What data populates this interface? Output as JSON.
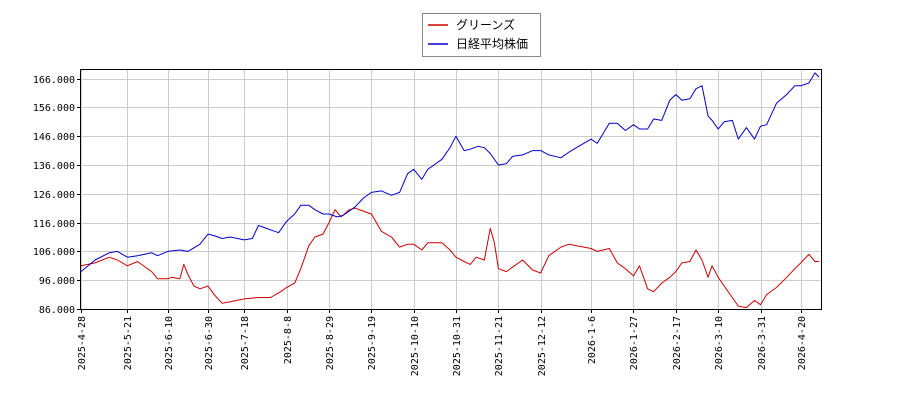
{
  "chart_data": {
    "type": "line",
    "legend_position": "top-center",
    "grid": true,
    "ylim": [
      86000,
      169000
    ],
    "yticks": [
      {
        "value": 86000,
        "label": "86.000"
      },
      {
        "value": 96000,
        "label": "96.000"
      },
      {
        "value": 106000,
        "label": "106.000"
      },
      {
        "value": 116000,
        "label": "116.000"
      },
      {
        "value": 126000,
        "label": "126.000"
      },
      {
        "value": 136000,
        "label": "136.000"
      },
      {
        "value": 146000,
        "label": "146.000"
      },
      {
        "value": 156000,
        "label": "156.000"
      },
      {
        "value": 166000,
        "label": "166.000"
      }
    ],
    "xlim": [
      "2025-04-28",
      "2026-04-30"
    ],
    "xticks": [
      "2025-4-28",
      "2025-5-21",
      "2025-6-10",
      "2025-6-30",
      "2025-7-18",
      "2025-8-8",
      "2025-8-29",
      "2025-9-19",
      "2025-10-10",
      "2025-10-31",
      "2025-11-21",
      "2025-12-12",
      "2026-1-6",
      "2026-1-27",
      "2026-2-17",
      "2026-3-10",
      "2026-3-31",
      "2026-4-20"
    ],
    "series": [
      {
        "name": "グリーンズ",
        "color": "#cc0000",
        "points": [
          [
            "2025-04-28",
            101000
          ],
          [
            "2025-05-05",
            102000
          ],
          [
            "2025-05-12",
            104000
          ],
          [
            "2025-05-16",
            103000
          ],
          [
            "2025-05-21",
            101000
          ],
          [
            "2025-05-26",
            102500
          ],
          [
            "2025-06-02",
            99000
          ],
          [
            "2025-06-05",
            96500
          ],
          [
            "2025-06-10",
            96500
          ],
          [
            "2025-06-12",
            97000
          ],
          [
            "2025-06-16",
            96500
          ],
          [
            "2025-06-18",
            101500
          ],
          [
            "2025-06-20",
            98000
          ],
          [
            "2025-06-23",
            94000
          ],
          [
            "2025-06-26",
            93000
          ],
          [
            "2025-06-30",
            94000
          ],
          [
            "2025-07-03",
            91000
          ],
          [
            "2025-07-07",
            88000
          ],
          [
            "2025-07-11",
            88500
          ],
          [
            "2025-07-18",
            89500
          ],
          [
            "2025-07-25",
            90000
          ],
          [
            "2025-07-31",
            90000
          ],
          [
            "2025-08-05",
            92000
          ],
          [
            "2025-08-08",
            93500
          ],
          [
            "2025-08-12",
            95000
          ],
          [
            "2025-08-15",
            100000
          ],
          [
            "2025-08-19",
            108000
          ],
          [
            "2025-08-22",
            111000
          ],
          [
            "2025-08-26",
            112000
          ],
          [
            "2025-08-29",
            116000
          ],
          [
            "2025-09-01",
            120500
          ],
          [
            "2025-09-04",
            118000
          ],
          [
            "2025-09-08",
            120500
          ],
          [
            "2025-09-11",
            121000
          ],
          [
            "2025-09-15",
            120000
          ],
          [
            "2025-09-19",
            119000
          ],
          [
            "2025-09-24",
            113000
          ],
          [
            "2025-09-29",
            111000
          ],
          [
            "2025-10-03",
            107500
          ],
          [
            "2025-10-07",
            108500
          ],
          [
            "2025-10-10",
            108500
          ],
          [
            "2025-10-14",
            106500
          ],
          [
            "2025-10-17",
            109000
          ],
          [
            "2025-10-24",
            109000
          ],
          [
            "2025-10-28",
            106500
          ],
          [
            "2025-10-31",
            104000
          ],
          [
            "2025-11-04",
            102500
          ],
          [
            "2025-11-07",
            101500
          ],
          [
            "2025-11-10",
            104000
          ],
          [
            "2025-11-14",
            103000
          ],
          [
            "2025-11-17",
            114000
          ],
          [
            "2025-11-19",
            109000
          ],
          [
            "2025-11-21",
            100000
          ],
          [
            "2025-11-25",
            99000
          ],
          [
            "2025-11-28",
            100500
          ],
          [
            "2025-12-03",
            103000
          ],
          [
            "2025-12-08",
            99500
          ],
          [
            "2025-12-12",
            98500
          ],
          [
            "2025-12-16",
            104500
          ],
          [
            "2025-12-22",
            107500
          ],
          [
            "2025-12-26",
            108500
          ],
          [
            "2026-01-06",
            107000
          ],
          [
            "2026-01-09",
            106000
          ],
          [
            "2026-01-15",
            107000
          ],
          [
            "2026-01-19",
            102000
          ],
          [
            "2026-01-23",
            100000
          ],
          [
            "2026-01-27",
            97500
          ],
          [
            "2026-01-30",
            101000
          ],
          [
            "2026-02-03",
            93000
          ],
          [
            "2026-02-06",
            92000
          ],
          [
            "2026-02-10",
            95000
          ],
          [
            "2026-02-14",
            97000
          ],
          [
            "2026-02-17",
            99000
          ],
          [
            "2026-02-20",
            102000
          ],
          [
            "2026-02-24",
            102500
          ],
          [
            "2026-02-27",
            106500
          ],
          [
            "2026-03-02",
            103000
          ],
          [
            "2026-03-05",
            97000
          ],
          [
            "2026-03-07",
            101000
          ],
          [
            "2026-03-10",
            97000
          ],
          [
            "2026-03-13",
            94000
          ],
          [
            "2026-03-17",
            90000
          ],
          [
            "2026-03-20",
            87000
          ],
          [
            "2026-03-24",
            86500
          ],
          [
            "2026-03-28",
            89000
          ],
          [
            "2026-03-31",
            87500
          ],
          [
            "2026-04-03",
            91000
          ],
          [
            "2026-04-08",
            93500
          ],
          [
            "2026-04-13",
            97000
          ],
          [
            "2026-04-17",
            100000
          ],
          [
            "2026-04-20",
            102000
          ],
          [
            "2026-04-24",
            105000
          ],
          [
            "2026-04-27",
            102500
          ],
          [
            "2026-04-29",
            102500
          ]
        ]
      },
      {
        "name": "日経平均株価",
        "color": "#0000cc",
        "points": [
          [
            "2025-04-28",
            99000
          ],
          [
            "2025-05-05",
            103000
          ],
          [
            "2025-05-12",
            105500
          ],
          [
            "2025-05-16",
            106000
          ],
          [
            "2025-05-21",
            104000
          ],
          [
            "2025-05-26",
            104500
          ],
          [
            "2025-06-02",
            105500
          ],
          [
            "2025-06-05",
            104500
          ],
          [
            "2025-06-10",
            106000
          ],
          [
            "2025-06-16",
            106500
          ],
          [
            "2025-06-20",
            106000
          ],
          [
            "2025-06-26",
            108500
          ],
          [
            "2025-06-30",
            112000
          ],
          [
            "2025-07-03",
            111500
          ],
          [
            "2025-07-07",
            110500
          ],
          [
            "2025-07-11",
            111000
          ],
          [
            "2025-07-18",
            110000
          ],
          [
            "2025-07-22",
            110500
          ],
          [
            "2025-07-25",
            115000
          ],
          [
            "2025-07-29",
            114000
          ],
          [
            "2025-07-31",
            113500
          ],
          [
            "2025-08-04",
            112500
          ],
          [
            "2025-08-08",
            116500
          ],
          [
            "2025-08-12",
            119000
          ],
          [
            "2025-08-15",
            122000
          ],
          [
            "2025-08-19",
            122000
          ],
          [
            "2025-08-22",
            120500
          ],
          [
            "2025-08-26",
            119000
          ],
          [
            "2025-08-29",
            119000
          ],
          [
            "2025-09-02",
            118000
          ],
          [
            "2025-09-05",
            118500
          ],
          [
            "2025-09-08",
            120000
          ],
          [
            "2025-09-11",
            121500
          ],
          [
            "2025-09-15",
            124500
          ],
          [
            "2025-09-19",
            126500
          ],
          [
            "2025-09-24",
            127000
          ],
          [
            "2025-09-29",
            125500
          ],
          [
            "2025-10-03",
            126500
          ],
          [
            "2025-10-07",
            133000
          ],
          [
            "2025-10-10",
            134500
          ],
          [
            "2025-10-14",
            131000
          ],
          [
            "2025-10-17",
            134500
          ],
          [
            "2025-10-20",
            136000
          ],
          [
            "2025-10-24",
            138000
          ],
          [
            "2025-10-28",
            142000
          ],
          [
            "2025-10-31",
            146000
          ],
          [
            "2025-11-04",
            141000
          ],
          [
            "2025-11-07",
            141500
          ],
          [
            "2025-11-11",
            142500
          ],
          [
            "2025-11-14",
            142000
          ],
          [
            "2025-11-17",
            140000
          ],
          [
            "2025-11-21",
            136000
          ],
          [
            "2025-11-25",
            136500
          ],
          [
            "2025-11-28",
            139000
          ],
          [
            "2025-12-03",
            139500
          ],
          [
            "2025-12-08",
            141000
          ],
          [
            "2025-12-12",
            141000
          ],
          [
            "2025-12-16",
            139500
          ],
          [
            "2025-12-22",
            138500
          ],
          [
            "2025-12-26",
            140500
          ],
          [
            "2026-01-06",
            145000
          ],
          [
            "2026-01-09",
            143500
          ],
          [
            "2026-01-15",
            150500
          ],
          [
            "2026-01-19",
            150500
          ],
          [
            "2026-01-23",
            148000
          ],
          [
            "2026-01-27",
            150000
          ],
          [
            "2026-01-30",
            148500
          ],
          [
            "2026-02-03",
            148500
          ],
          [
            "2026-02-06",
            152000
          ],
          [
            "2026-02-10",
            151500
          ],
          [
            "2026-02-14",
            158500
          ],
          [
            "2026-02-17",
            160500
          ],
          [
            "2026-02-20",
            158500
          ],
          [
            "2026-02-24",
            159000
          ],
          [
            "2026-02-27",
            162500
          ],
          [
            "2026-03-02",
            163500
          ],
          [
            "2026-03-05",
            153000
          ],
          [
            "2026-03-07",
            151500
          ],
          [
            "2026-03-10",
            148500
          ],
          [
            "2026-03-13",
            151000
          ],
          [
            "2026-03-17",
            151500
          ],
          [
            "2026-03-20",
            145000
          ],
          [
            "2026-03-24",
            149000
          ],
          [
            "2026-03-28",
            145000
          ],
          [
            "2026-03-31",
            149500
          ],
          [
            "2026-04-03",
            150000
          ],
          [
            "2026-04-08",
            157500
          ],
          [
            "2026-04-13",
            160500
          ],
          [
            "2026-04-17",
            163500
          ],
          [
            "2026-04-20",
            163500
          ],
          [
            "2026-04-24",
            164500
          ],
          [
            "2026-04-27",
            168000
          ],
          [
            "2026-04-29",
            166500
          ]
        ]
      }
    ]
  }
}
